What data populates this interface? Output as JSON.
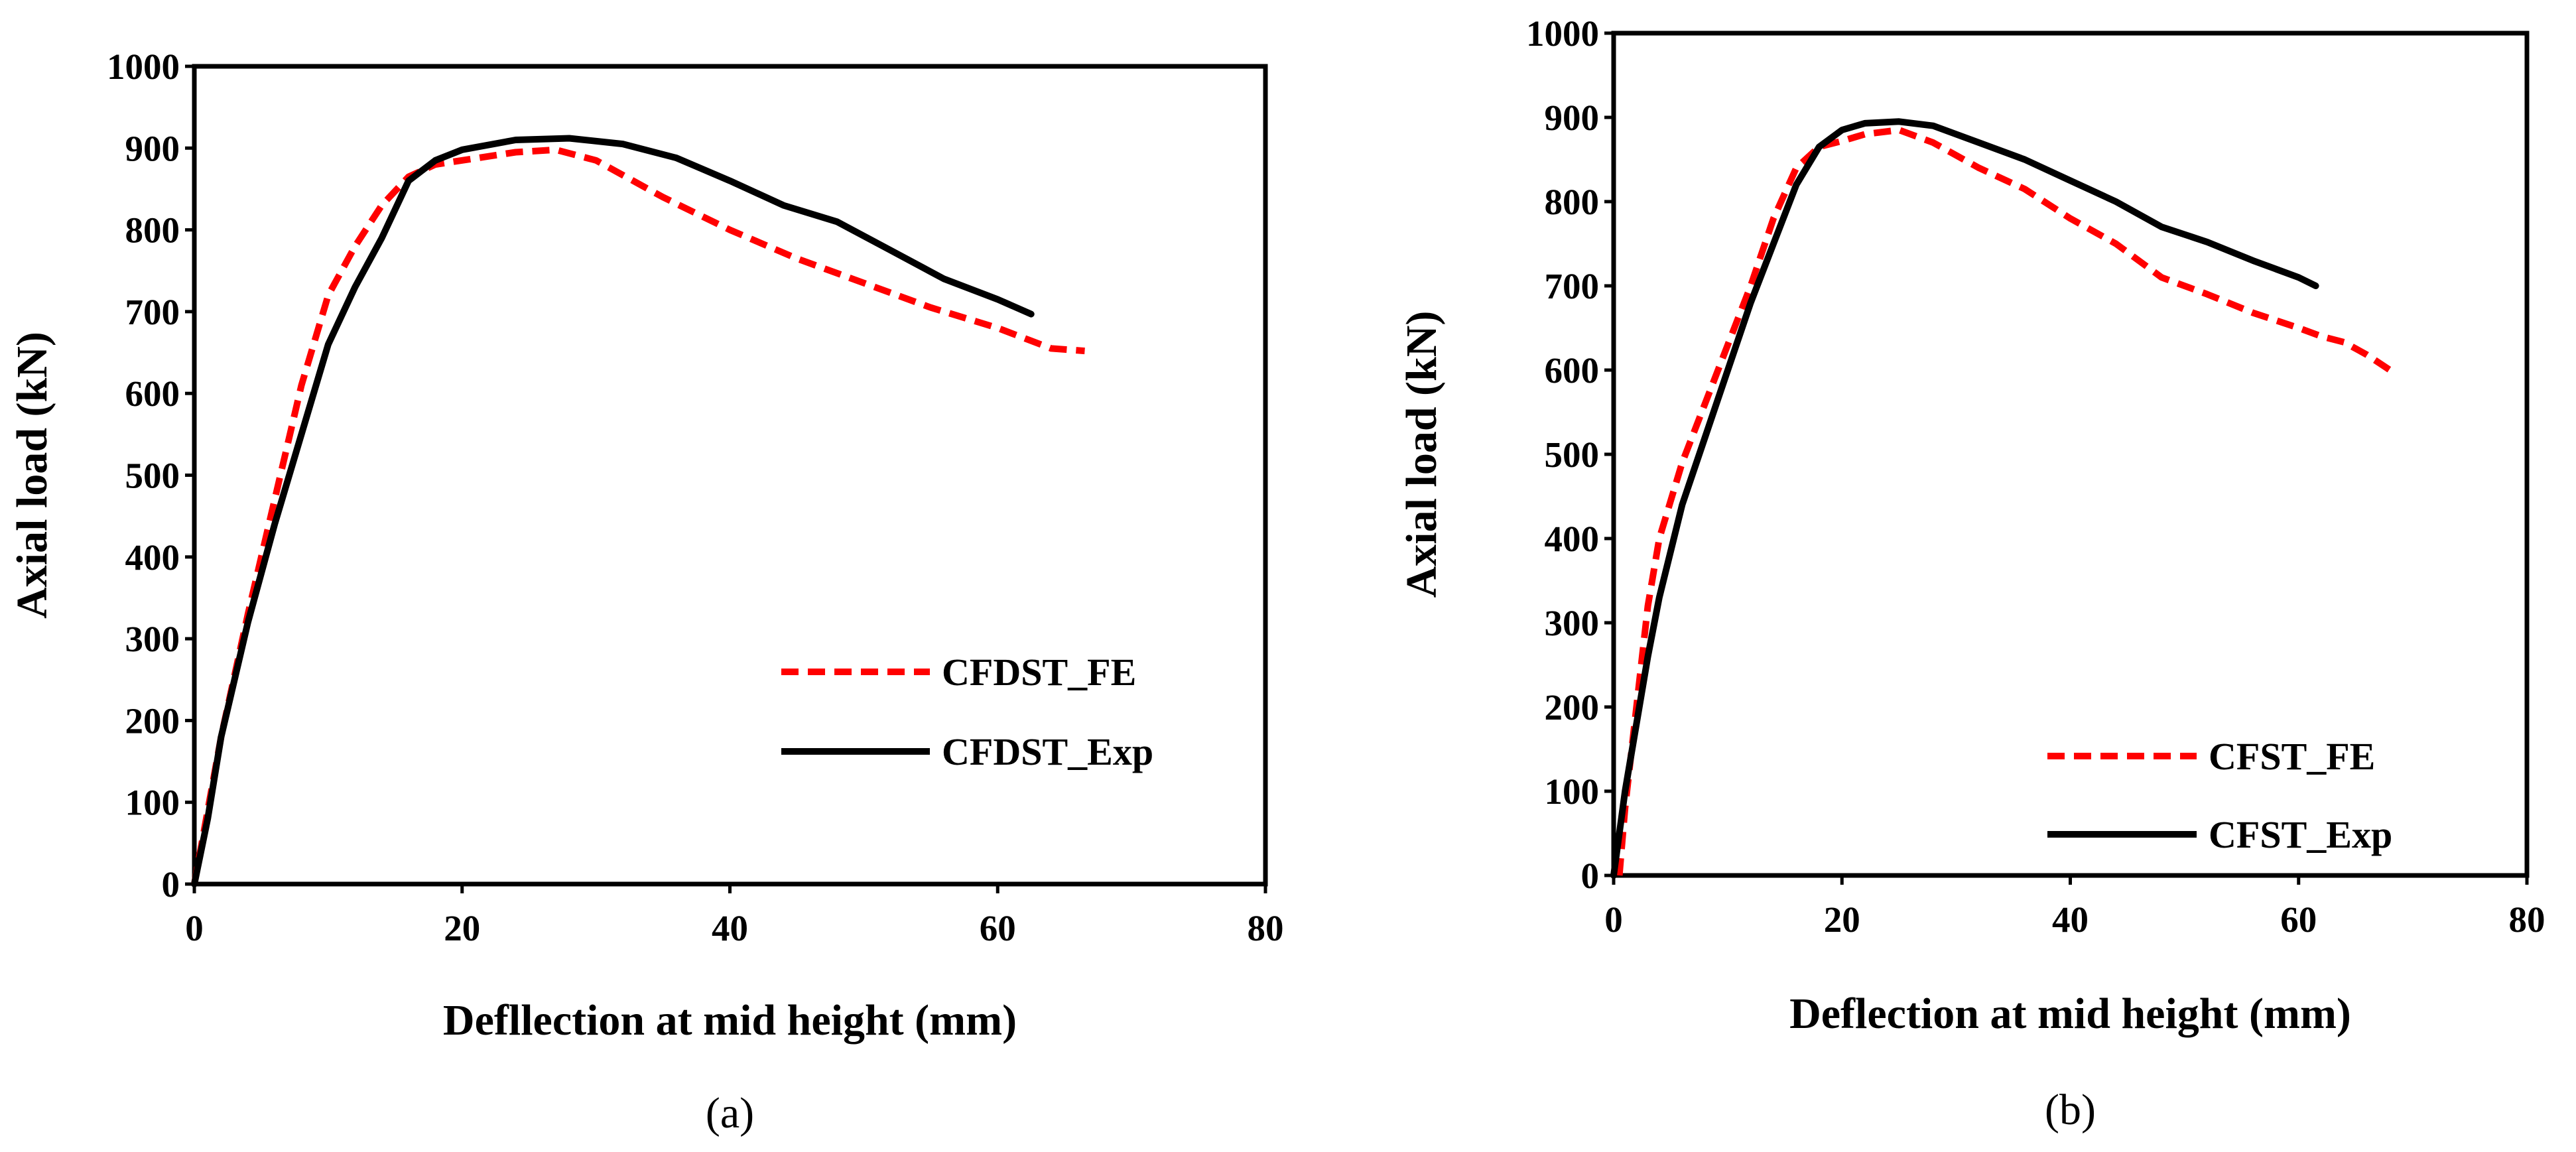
{
  "chart_data": [
    {
      "type": "line",
      "panel_label": "(a)",
      "xlabel": "Defllection at mid height (mm)",
      "ylabel": "Axial load (kN)",
      "xlim": [
        0,
        80
      ],
      "ylim": [
        0,
        1000
      ],
      "xticks": [
        0,
        20,
        40,
        60,
        80
      ],
      "yticks": [
        0,
        100,
        200,
        300,
        400,
        500,
        600,
        700,
        800,
        900,
        1000
      ],
      "grid": false,
      "legend_position": "lower-right",
      "series": [
        {
          "name": "CFDST_FE",
          "style": "dashed",
          "color": "#ff0000",
          "x": [
            0,
            1,
            2,
            4,
            6,
            8,
            10,
            12,
            14,
            16,
            18,
            20,
            24,
            27,
            30,
            35,
            40,
            45,
            50,
            55,
            60,
            64,
            66.5
          ],
          "y": [
            0,
            90,
            180,
            330,
            470,
            610,
            720,
            780,
            830,
            865,
            880,
            885,
            895,
            898,
            885,
            840,
            800,
            765,
            735,
            705,
            680,
            655,
            652
          ]
        },
        {
          "name": "CFDST_Exp",
          "style": "solid",
          "color": "#000000",
          "x": [
            0,
            1,
            2,
            4,
            6,
            8,
            10,
            12,
            14,
            16,
            18,
            20,
            24,
            28,
            32,
            36,
            40,
            44,
            48,
            52,
            56,
            60,
            62.5
          ],
          "y": [
            0,
            80,
            180,
            320,
            440,
            550,
            660,
            730,
            790,
            860,
            885,
            898,
            910,
            912,
            905,
            888,
            860,
            830,
            810,
            775,
            740,
            715,
            697
          ]
        }
      ]
    },
    {
      "type": "line",
      "panel_label": "(b)",
      "xlabel": "Deflection at mid height (mm)",
      "ylabel": "Axial load (kN)",
      "xlim": [
        0,
        80
      ],
      "ylim": [
        0,
        1000
      ],
      "xticks": [
        0,
        20,
        40,
        60,
        80
      ],
      "yticks": [
        0,
        100,
        200,
        300,
        400,
        500,
        600,
        700,
        800,
        900,
        1000
      ],
      "grid": false,
      "legend_position": "lower-right",
      "series": [
        {
          "name": "CFST_FE",
          "style": "dashed",
          "color": "#ff0000",
          "x": [
            0.5,
            1,
            2,
            3,
            4,
            6,
            8,
            10,
            12,
            14,
            16,
            18,
            20,
            22,
            25,
            28,
            32,
            36,
            40,
            44,
            48,
            52,
            56,
            60,
            62,
            64,
            66,
            68
          ],
          "y": [
            0,
            80,
            200,
            320,
            400,
            490,
            560,
            630,
            700,
            780,
            840,
            865,
            872,
            880,
            885,
            870,
            840,
            815,
            780,
            750,
            710,
            690,
            668,
            650,
            640,
            633,
            618,
            600
          ]
        },
        {
          "name": "CFST_Exp",
          "style": "solid",
          "color": "#000000",
          "x": [
            0,
            1,
            2,
            3,
            4,
            6,
            8,
            10,
            12,
            14,
            16,
            18,
            20,
            22,
            25,
            28,
            32,
            36,
            40,
            44,
            48,
            52,
            56,
            60,
            61.5
          ],
          "y": [
            0,
            100,
            180,
            260,
            330,
            440,
            520,
            600,
            680,
            750,
            820,
            865,
            885,
            893,
            895,
            890,
            870,
            850,
            825,
            800,
            770,
            752,
            730,
            710,
            700
          ]
        }
      ]
    }
  ]
}
